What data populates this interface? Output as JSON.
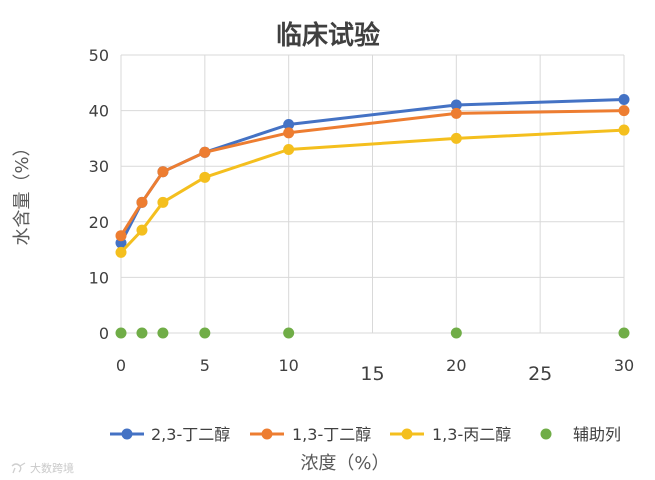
{
  "chart_data": {
    "type": "scatter",
    "title": "临床试验",
    "xlabel": "浓度（%）",
    "ylabel": "水含量（%）",
    "xlim": [
      0,
      30
    ],
    "ylim": [
      0,
      50
    ],
    "x_ticks": [
      {
        "value": 0,
        "label": "0",
        "large": false
      },
      {
        "value": 5,
        "label": "5",
        "large": false
      },
      {
        "value": 10,
        "label": "10",
        "large": false
      },
      {
        "value": 15,
        "label": "15",
        "large": true
      },
      {
        "value": 20,
        "label": "20",
        "large": false
      },
      {
        "value": 25,
        "label": "25",
        "large": true
      },
      {
        "value": 30,
        "label": "30",
        "large": false
      }
    ],
    "y_ticks": [
      0,
      10,
      20,
      30,
      40,
      50
    ],
    "grid": true,
    "legend_position": "bottom",
    "series": [
      {
        "name": "2,3-丁二醇",
        "color": "#4472c4",
        "lines": true,
        "points": [
          [
            0,
            16.2
          ],
          [
            1.25,
            23.5
          ],
          [
            2.5,
            29.0
          ],
          [
            5,
            32.5
          ],
          [
            10,
            37.5
          ],
          [
            20,
            41.0
          ],
          [
            30,
            42.0
          ]
        ]
      },
      {
        "name": "1,3-丁二醇",
        "color": "#ed7d31",
        "lines": true,
        "points": [
          [
            0,
            17.5
          ],
          [
            1.25,
            23.5
          ],
          [
            2.5,
            29.0
          ],
          [
            5,
            32.5
          ],
          [
            10,
            36.0
          ],
          [
            20,
            39.5
          ],
          [
            30,
            40.0
          ]
        ]
      },
      {
        "name": "1,3-丙二醇",
        "color": "#f4bf1e",
        "lines": true,
        "points": [
          [
            0,
            14.5
          ],
          [
            1.25,
            18.5
          ],
          [
            2.5,
            23.5
          ],
          [
            5,
            28.0
          ],
          [
            10,
            33.0
          ],
          [
            20,
            35.0
          ],
          [
            30,
            36.5
          ]
        ]
      },
      {
        "name": "辅助列",
        "color": "#70ad47",
        "lines": false,
        "points": [
          [
            0,
            0
          ],
          [
            1.25,
            0
          ],
          [
            2.5,
            0
          ],
          [
            5,
            0
          ],
          [
            10,
            0
          ],
          [
            20,
            0
          ],
          [
            30,
            0
          ]
        ]
      }
    ]
  },
  "watermark": {
    "text": "大数跨境",
    "icon": "platform-logo-icon"
  }
}
